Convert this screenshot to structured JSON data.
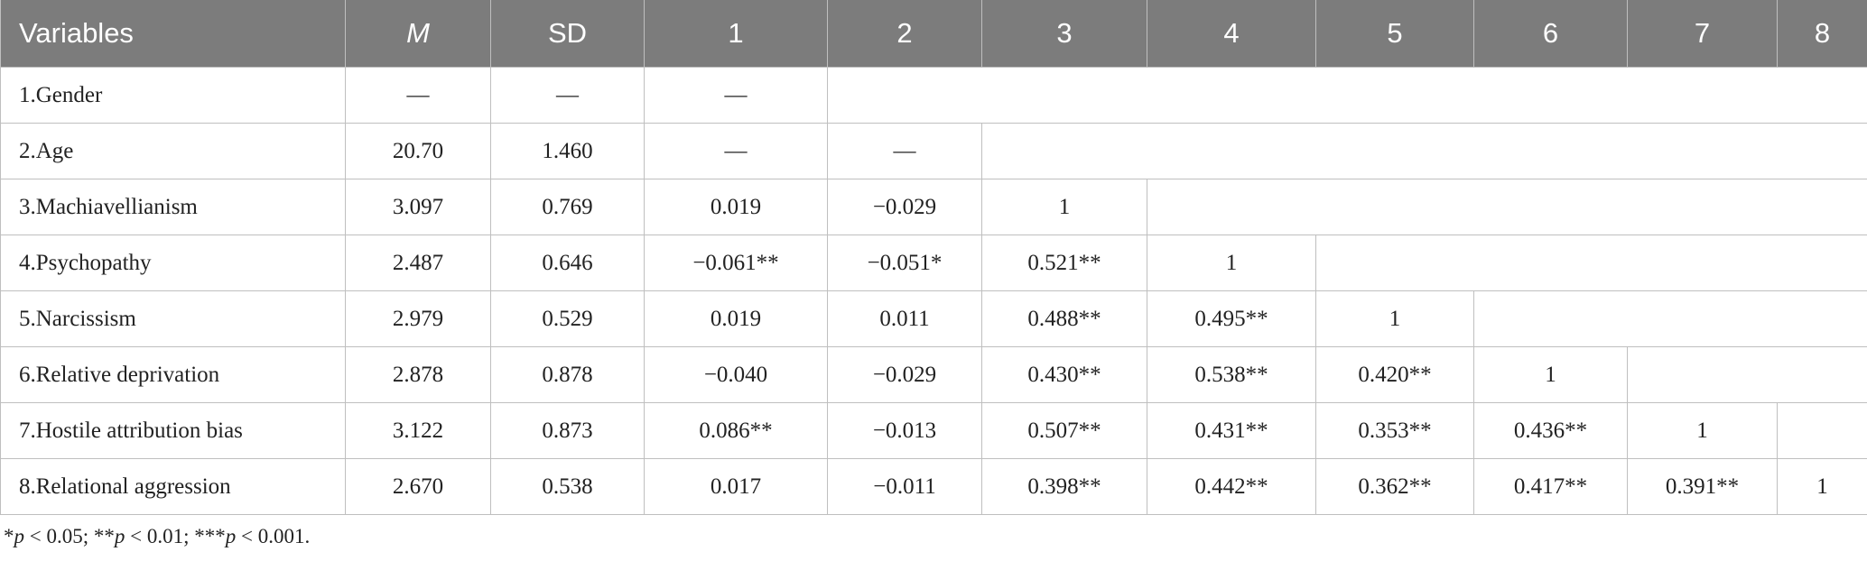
{
  "table": {
    "headers": [
      "Variables",
      "M",
      "SD",
      "1",
      "2",
      "3",
      "4",
      "5",
      "6",
      "7",
      "8"
    ],
    "rows": [
      {
        "label": "1.Gender",
        "cells": [
          "—",
          "—",
          "—"
        ]
      },
      {
        "label": "2.Age",
        "cells": [
          "20.70",
          "1.460",
          "—",
          "—"
        ]
      },
      {
        "label": "3.Machiavellianism",
        "cells": [
          "3.097",
          "0.769",
          "0.019",
          "−0.029",
          "1"
        ]
      },
      {
        "label": "4.Psychopathy",
        "cells": [
          "2.487",
          "0.646",
          "−0.061**",
          "−0.051*",
          "0.521**",
          "1"
        ]
      },
      {
        "label": "5.Narcissism",
        "cells": [
          "2.979",
          "0.529",
          "0.019",
          "0.011",
          "0.488**",
          "0.495**",
          "1"
        ]
      },
      {
        "label": "6.Relative deprivation",
        "cells": [
          "2.878",
          "0.878",
          "−0.040",
          "−0.029",
          "0.430**",
          "0.538**",
          "0.420**",
          "1"
        ]
      },
      {
        "label": "7.Hostile attribution bias",
        "cells": [
          "3.122",
          "0.873",
          "0.086**",
          "−0.013",
          "0.507**",
          "0.431**",
          "0.353**",
          "0.436**",
          "1"
        ]
      },
      {
        "label": "8.Relational aggression",
        "cells": [
          "2.670",
          "0.538",
          "0.017",
          "−0.011",
          "0.398**",
          "0.442**",
          "0.362**",
          "0.417**",
          "0.391**",
          "1"
        ]
      }
    ]
  },
  "footnote": {
    "parts": [
      "*",
      "p",
      " < 0.05; **",
      "p",
      " < 0.01; ***",
      "p",
      " < 0.001."
    ]
  }
}
